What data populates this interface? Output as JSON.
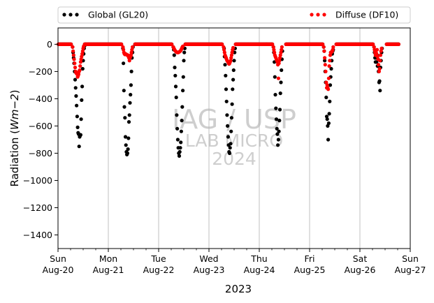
{
  "chart_data": {
    "type": "scatter",
    "title": "",
    "xlabel": "2023",
    "ylabel_main": "Radiation (",
    "ylabel_unit": "Wm",
    "ylabel_exp": "−2",
    "ylabel_close": ")",
    "ylim": [
      -1500,
      120
    ],
    "yticks": [
      0,
      -200,
      -400,
      -600,
      -800,
      -1000,
      -1200,
      -1400
    ],
    "ytick_labels": [
      "0",
      "−200",
      "−400",
      "−600",
      "−800",
      "−1000",
      "−1200",
      "−1400"
    ],
    "xlim_days": [
      0,
      7
    ],
    "xticks": [
      {
        "day": "Sun",
        "date": "Aug-20"
      },
      {
        "day": "Mon",
        "date": "Aug-21"
      },
      {
        "day": "Tue",
        "date": "Aug-22"
      },
      {
        "day": "Wed",
        "date": "Aug-23"
      },
      {
        "day": "Thu",
        "date": "Aug-24"
      },
      {
        "day": "Fri",
        "date": "Aug-25"
      },
      {
        "day": "Sat",
        "date": "Aug-26"
      },
      {
        "day": "Sun",
        "date": "Aug-27"
      }
    ],
    "grid": "vertical",
    "legend_placement": "top, above plot",
    "watermark": [
      "IAG / USP",
      "LAB MICRO",
      "2024"
    ],
    "series": [
      {
        "name": "Global (GL20)",
        "color": "#000000",
        "points": [
          [
            0.29,
            -20
          ],
          [
            0.3,
            -60
          ],
          [
            0.31,
            -100
          ],
          [
            0.32,
            -140
          ],
          [
            0.33,
            -200
          ],
          [
            0.34,
            -260
          ],
          [
            0.35,
            -320
          ],
          [
            0.36,
            -380
          ],
          [
            0.37,
            -450
          ],
          [
            0.38,
            -530
          ],
          [
            0.39,
            -610
          ],
          [
            0.4,
            -650
          ],
          [
            0.41,
            -660
          ],
          [
            0.42,
            -750
          ],
          [
            0.43,
            -680
          ],
          [
            0.44,
            -670
          ],
          [
            0.45,
            -665
          ],
          [
            0.46,
            -550
          ],
          [
            0.47,
            -410
          ],
          [
            0.48,
            -310
          ],
          [
            0.49,
            -180
          ],
          [
            0.5,
            -120
          ],
          [
            0.51,
            -70
          ],
          [
            0.52,
            -30
          ],
          [
            0.53,
            -10
          ],
          [
            1.29,
            -30
          ],
          [
            1.3,
            -140
          ],
          [
            1.31,
            -340
          ],
          [
            1.32,
            -460
          ],
          [
            1.33,
            -540
          ],
          [
            1.34,
            -680
          ],
          [
            1.35,
            -740
          ],
          [
            1.36,
            -790
          ],
          [
            1.37,
            -810
          ],
          [
            1.38,
            -800
          ],
          [
            1.39,
            -770
          ],
          [
            1.4,
            -690
          ],
          [
            1.41,
            -570
          ],
          [
            1.42,
            -520
          ],
          [
            1.43,
            -430
          ],
          [
            1.44,
            -370
          ],
          [
            1.45,
            -300
          ],
          [
            1.46,
            -200
          ],
          [
            1.47,
            -100
          ],
          [
            1.48,
            -60
          ],
          [
            1.49,
            -20
          ],
          [
            2.29,
            -20
          ],
          [
            2.3,
            -40
          ],
          [
            2.31,
            -80
          ],
          [
            2.32,
            -170
          ],
          [
            2.33,
            -230
          ],
          [
            2.34,
            -310
          ],
          [
            2.35,
            -390
          ],
          [
            2.36,
            -520
          ],
          [
            2.37,
            -620
          ],
          [
            2.38,
            -700
          ],
          [
            2.39,
            -760
          ],
          [
            2.4,
            -800
          ],
          [
            2.41,
            -820
          ],
          [
            2.42,
            -790
          ],
          [
            2.43,
            -760
          ],
          [
            2.44,
            -720
          ],
          [
            2.45,
            -640
          ],
          [
            2.46,
            -560
          ],
          [
            2.47,
            -460
          ],
          [
            2.48,
            -340
          ],
          [
            2.49,
            -240
          ],
          [
            2.5,
            -120
          ],
          [
            2.51,
            -60
          ],
          [
            2.52,
            -30
          ],
          [
            3.3,
            -30
          ],
          [
            3.31,
            -90
          ],
          [
            3.32,
            -150
          ],
          [
            3.33,
            -230
          ],
          [
            3.34,
            -330
          ],
          [
            3.35,
            -420
          ],
          [
            3.36,
            -520
          ],
          [
            3.37,
            -600
          ],
          [
            3.38,
            -680
          ],
          [
            3.39,
            -740
          ],
          [
            3.4,
            -790
          ],
          [
            3.41,
            -800
          ],
          [
            3.42,
            -760
          ],
          [
            3.43,
            -730
          ],
          [
            3.44,
            -640
          ],
          [
            3.45,
            -540
          ],
          [
            3.46,
            -440
          ],
          [
            3.47,
            -330
          ],
          [
            3.48,
            -260
          ],
          [
            3.49,
            -190
          ],
          [
            3.5,
            -120
          ],
          [
            3.51,
            -60
          ],
          [
            3.52,
            -30
          ],
          [
            4.28,
            -20
          ],
          [
            4.29,
            -60
          ],
          [
            4.3,
            -130
          ],
          [
            4.31,
            -240
          ],
          [
            4.32,
            -370
          ],
          [
            4.33,
            -470
          ],
          [
            4.34,
            -550
          ],
          [
            4.35,
            -620
          ],
          [
            4.36,
            -660
          ],
          [
            4.37,
            -740
          ],
          [
            4.38,
            -700
          ],
          [
            4.39,
            -640
          ],
          [
            4.4,
            -560
          ],
          [
            4.41,
            -480
          ],
          [
            4.42,
            -360
          ],
          [
            4.43,
            -280
          ],
          [
            4.44,
            -190
          ],
          [
            4.45,
            -110
          ],
          [
            4.46,
            -50
          ],
          [
            5.28,
            -20
          ],
          [
            5.29,
            -50
          ],
          [
            5.3,
            -120
          ],
          [
            5.31,
            -200
          ],
          [
            5.32,
            -280
          ],
          [
            5.33,
            -390
          ],
          [
            5.34,
            -530
          ],
          [
            5.35,
            -550
          ],
          [
            5.36,
            -600
          ],
          [
            5.37,
            -700
          ],
          [
            5.38,
            -580
          ],
          [
            5.39,
            -510
          ],
          [
            5.4,
            -420
          ],
          [
            5.41,
            -300
          ],
          [
            5.42,
            -240
          ],
          [
            5.43,
            -180
          ],
          [
            5.44,
            -120
          ],
          [
            5.45,
            -70
          ],
          [
            5.46,
            -50
          ],
          [
            5.47,
            -40
          ],
          [
            6.28,
            -20
          ],
          [
            6.29,
            -60
          ],
          [
            6.3,
            -100
          ],
          [
            6.31,
            -130
          ],
          [
            6.32,
            -100
          ],
          [
            6.33,
            -130
          ],
          [
            6.34,
            -80
          ],
          [
            6.35,
            -160
          ],
          [
            6.36,
            -110
          ],
          [
            6.37,
            -200
          ],
          [
            6.38,
            -280
          ],
          [
            6.39,
            -270
          ],
          [
            6.4,
            -340
          ],
          [
            6.41,
            -170
          ],
          [
            6.42,
            -120
          ],
          [
            6.43,
            -60
          ],
          [
            6.44,
            -30
          ]
        ]
      },
      {
        "name": "Diffuse (DF10)",
        "color": "#ff0000",
        "points": [
          [
            0.29,
            -20
          ],
          [
            0.3,
            -50
          ],
          [
            0.31,
            -80
          ],
          [
            0.32,
            -110
          ],
          [
            0.33,
            -140
          ],
          [
            0.34,
            -170
          ],
          [
            0.35,
            -200
          ],
          [
            0.36,
            -210
          ],
          [
            0.37,
            -215
          ],
          [
            0.38,
            -220
          ],
          [
            0.39,
            -240
          ],
          [
            0.4,
            -230
          ],
          [
            0.41,
            -220
          ],
          [
            0.42,
            -200
          ],
          [
            0.43,
            -190
          ],
          [
            0.44,
            -160
          ],
          [
            0.45,
            -130
          ],
          [
            0.46,
            -110
          ],
          [
            0.47,
            -90
          ],
          [
            0.48,
            -70
          ],
          [
            0.49,
            -50
          ],
          [
            0.5,
            -30
          ],
          [
            0.51,
            -15
          ],
          [
            1.29,
            -20
          ],
          [
            1.3,
            -40
          ],
          [
            1.31,
            -60
          ],
          [
            1.32,
            -70
          ],
          [
            1.33,
            -75
          ],
          [
            1.34,
            -70
          ],
          [
            1.35,
            -72
          ],
          [
            1.36,
            -75
          ],
          [
            1.37,
            -78
          ],
          [
            1.38,
            -80
          ],
          [
            1.39,
            -80
          ],
          [
            1.4,
            -90
          ],
          [
            1.41,
            -100
          ],
          [
            1.42,
            -120
          ],
          [
            1.43,
            -100
          ],
          [
            1.44,
            -90
          ],
          [
            1.45,
            -80
          ],
          [
            1.46,
            -60
          ],
          [
            1.47,
            -40
          ],
          [
            1.48,
            -20
          ],
          [
            2.29,
            -20
          ],
          [
            2.3,
            -28
          ],
          [
            2.31,
            -35
          ],
          [
            2.32,
            -42
          ],
          [
            2.33,
            -48
          ],
          [
            2.34,
            -52
          ],
          [
            2.35,
            -56
          ],
          [
            2.36,
            -58
          ],
          [
            2.37,
            -60
          ],
          [
            2.38,
            -60
          ],
          [
            2.39,
            -60
          ],
          [
            2.4,
            -58
          ],
          [
            2.41,
            -56
          ],
          [
            2.42,
            -53
          ],
          [
            2.43,
            -50
          ],
          [
            2.44,
            -45
          ],
          [
            2.45,
            -38
          ],
          [
            2.46,
            -30
          ],
          [
            2.47,
            -22
          ],
          [
            2.48,
            -15
          ],
          [
            3.29,
            -20
          ],
          [
            3.3,
            -40
          ],
          [
            3.31,
            -60
          ],
          [
            3.32,
            -80
          ],
          [
            3.33,
            -90
          ],
          [
            3.34,
            -100
          ],
          [
            3.35,
            -110
          ],
          [
            3.36,
            -120
          ],
          [
            3.37,
            -125
          ],
          [
            3.38,
            -130
          ],
          [
            3.39,
            -140
          ],
          [
            3.4,
            -145
          ],
          [
            3.41,
            -140
          ],
          [
            3.42,
            -130
          ],
          [
            3.43,
            -120
          ],
          [
            3.44,
            -100
          ],
          [
            3.45,
            -80
          ],
          [
            3.46,
            -60
          ],
          [
            3.47,
            -40
          ],
          [
            3.48,
            -25
          ],
          [
            4.28,
            -20
          ],
          [
            4.29,
            -40
          ],
          [
            4.3,
            -60
          ],
          [
            4.31,
            -80
          ],
          [
            4.32,
            -90
          ],
          [
            4.33,
            -100
          ],
          [
            4.34,
            -110
          ],
          [
            4.35,
            -120
          ],
          [
            4.36,
            -130
          ],
          [
            4.37,
            -150
          ],
          [
            4.38,
            -250
          ],
          [
            4.39,
            -140
          ],
          [
            4.4,
            -120
          ],
          [
            4.41,
            -100
          ],
          [
            4.42,
            -80
          ],
          [
            4.43,
            -60
          ],
          [
            4.44,
            -40
          ],
          [
            4.45,
            -20
          ],
          [
            5.28,
            -20
          ],
          [
            5.29,
            -50
          ],
          [
            5.3,
            -100
          ],
          [
            5.31,
            -150
          ],
          [
            5.32,
            -200
          ],
          [
            5.33,
            -280
          ],
          [
            5.34,
            -320
          ],
          [
            5.35,
            -300
          ],
          [
            5.36,
            -320
          ],
          [
            5.37,
            -330
          ],
          [
            5.38,
            -250
          ],
          [
            5.39,
            -160
          ],
          [
            5.4,
            -120
          ],
          [
            5.41,
            -80
          ],
          [
            5.42,
            -60
          ],
          [
            5.43,
            -60
          ],
          [
            5.44,
            -55
          ],
          [
            5.45,
            -50
          ],
          [
            5.46,
            -40
          ],
          [
            5.47,
            -20
          ],
          [
            6.28,
            -20
          ],
          [
            6.29,
            -40
          ],
          [
            6.3,
            -60
          ],
          [
            6.31,
            -80
          ],
          [
            6.32,
            -60
          ],
          [
            6.33,
            -70
          ],
          [
            6.34,
            -40
          ],
          [
            6.35,
            -90
          ],
          [
            6.36,
            -110
          ],
          [
            6.37,
            -150
          ],
          [
            6.38,
            -200
          ],
          [
            6.39,
            -180
          ],
          [
            6.4,
            -120
          ],
          [
            6.41,
            -80
          ],
          [
            6.42,
            -50
          ],
          [
            6.43,
            -30
          ]
        ]
      }
    ]
  }
}
